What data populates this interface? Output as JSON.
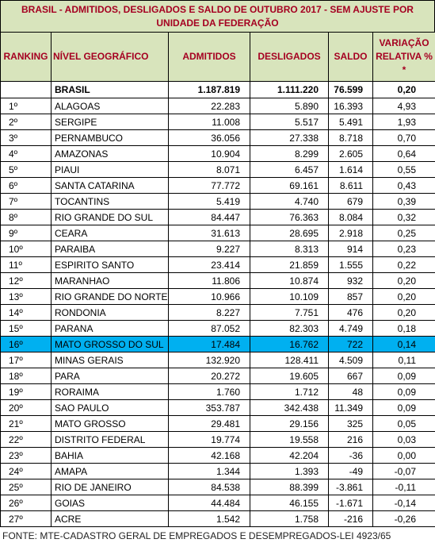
{
  "title": "BRASIL - ADMITIDOS, DESLIGADOS E SALDO DE OUTUBRO 2017 - SEM AJUSTE       POR UNIDADE DA FEDERAÇÃO",
  "table": {
    "headers": [
      "RANKING",
      "NÍVEL GEOGRÁFICO",
      "ADMITIDOS",
      "DESLIGADOS",
      "SALDO",
      "VARIAÇÃO RELATIVA % *"
    ],
    "total": [
      "BRASIL",
      "1.187.819",
      "1.111.220",
      "76.599",
      "0,20"
    ],
    "rows": [
      [
        "1º",
        "ALAGOAS",
        "22.283",
        "5.890",
        "16.393",
        "4,93"
      ],
      [
        "2º",
        "SERGIPE",
        "11.008",
        "5.517",
        "5.491",
        "1,93"
      ],
      [
        "3º",
        "PERNAMBUCO",
        "36.056",
        "27.338",
        "8.718",
        "0,70"
      ],
      [
        "4º",
        "AMAZONAS",
        "10.904",
        "8.299",
        "2.605",
        "0,64"
      ],
      [
        "5º",
        "PIAUI",
        "8.071",
        "6.457",
        "1.614",
        "0,55"
      ],
      [
        "6º",
        "SANTA CATARINA",
        "77.772",
        "69.161",
        "8.611",
        "0,43"
      ],
      [
        "7º",
        "TOCANTINS",
        "5.419",
        "4.740",
        "679",
        "0,39"
      ],
      [
        "8º",
        "RIO GRANDE DO SUL",
        "84.447",
        "76.363",
        "8.084",
        "0,32"
      ],
      [
        "9º",
        "CEARA",
        "31.613",
        "28.695",
        "2.918",
        "0,25"
      ],
      [
        "10º",
        "PARAIBA",
        "9.227",
        "8.313",
        "914",
        "0,23"
      ],
      [
        "11º",
        "ESPIRITO SANTO",
        "23.414",
        "21.859",
        "1.555",
        "0,22"
      ],
      [
        "12º",
        "MARANHAO",
        "11.806",
        "10.874",
        "932",
        "0,20"
      ],
      [
        "13º",
        "RIO GRANDE DO NORTE",
        "10.966",
        "10.109",
        "857",
        "0,20"
      ],
      [
        "14º",
        "RONDONIA",
        "8.227",
        "7.751",
        "476",
        "0,20"
      ],
      [
        "15º",
        "PARANA",
        "87.052",
        "82.303",
        "4.749",
        "0,18"
      ],
      [
        "16º",
        "MATO GROSSO DO SUL",
        "17.484",
        "16.762",
        "722",
        "0,14"
      ],
      [
        "17º",
        "MINAS GERAIS",
        "132.920",
        "128.411",
        "4.509",
        "0,11"
      ],
      [
        "18º",
        "PARA",
        "20.272",
        "19.605",
        "667",
        "0,09"
      ],
      [
        "19º",
        "RORAIMA",
        "1.760",
        "1.712",
        "48",
        "0,09"
      ],
      [
        "20º",
        "SAO PAULO",
        "353.787",
        "342.438",
        "11.349",
        "0,09"
      ],
      [
        "21º",
        "MATO GROSSO",
        "29.481",
        "29.156",
        "325",
        "0,05"
      ],
      [
        "22º",
        "DISTRITO FEDERAL",
        "19.774",
        "19.558",
        "216",
        "0,03"
      ],
      [
        "23º",
        "BAHIA",
        "42.168",
        "42.204",
        "-36",
        "0,00"
      ],
      [
        "24º",
        "AMAPA",
        "1.344",
        "1.393",
        "-49",
        "-0,07"
      ],
      [
        "25º",
        "RIO DE JANEIRO",
        "84.538",
        "88.399",
        "-3.861",
        "-0,11"
      ],
      [
        "26º",
        "GOIAS",
        "44.484",
        "46.155",
        "-1.671",
        "-0,14"
      ],
      [
        "27º",
        "ACRE",
        "1.542",
        "1.758",
        "-216",
        "-0,26"
      ]
    ]
  },
  "footer": "FONTE: MTE-CADASTRO GERAL DE EMPREGADOS E DESEMPREGADOS-LEI 4923/65"
}
